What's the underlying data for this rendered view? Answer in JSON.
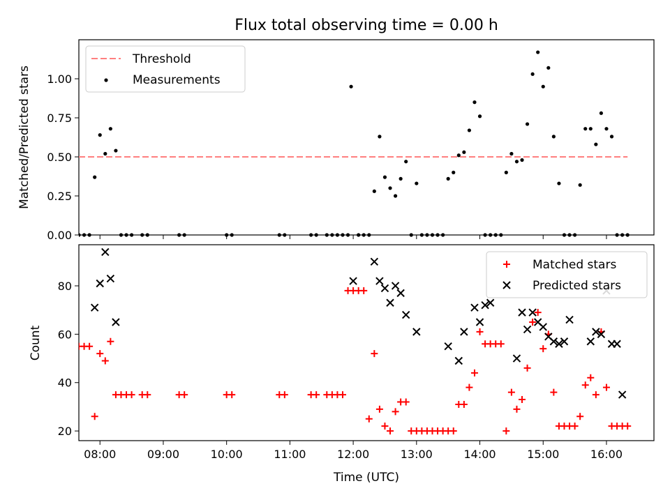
{
  "chart_data": [
    {
      "type": "scatter",
      "title": "Flux total observing time = 0.00 h",
      "xlabel": "",
      "ylabel": "Matched/Predicted stars",
      "xlim": [
        "07:40",
        "16:45"
      ],
      "ylim": [
        0,
        1.25
      ],
      "yticks": [
        "0.00",
        "0.25",
        "0.50",
        "0.75",
        "1.00"
      ],
      "legend_position": "top-left",
      "series": [
        {
          "name": "Threshold",
          "style": "dashed-line",
          "color": "#ff7f7f",
          "x": [
            "07:40",
            "16:20"
          ],
          "y": [
            0.5,
            0.5
          ]
        },
        {
          "name": "Measurements",
          "style": "dot",
          "color": "#000000",
          "x": [
            "07:40",
            "07:45",
            "07:50",
            "07:55",
            "08:00",
            "08:05",
            "08:10",
            "08:15",
            "08:20",
            "08:25",
            "08:30",
            "08:40",
            "08:45",
            "09:15",
            "09:20",
            "10:00",
            "10:05",
            "10:50",
            "10:55",
            "11:20",
            "11:25",
            "11:35",
            "11:40",
            "11:45",
            "11:50",
            "11:55",
            "11:58",
            "12:05",
            "12:10",
            "12:15",
            "12:20",
            "12:25",
            "12:30",
            "12:35",
            "12:40",
            "12:45",
            "12:50",
            "12:55",
            "13:00",
            "13:05",
            "13:10",
            "13:15",
            "13:20",
            "13:25",
            "13:30",
            "13:35",
            "13:40",
            "13:45",
            "13:50",
            "13:55",
            "14:00",
            "14:05",
            "14:10",
            "14:15",
            "14:20",
            "14:25",
            "14:30",
            "14:35",
            "14:40",
            "14:45",
            "14:50",
            "14:55",
            "15:00",
            "15:05",
            "15:10",
            "15:15",
            "15:20",
            "15:25",
            "15:30",
            "15:35",
            "15:40",
            "15:45",
            "15:50",
            "15:55",
            "16:00",
            "16:05",
            "16:10",
            "16:15",
            "16:20"
          ],
          "y": [
            0,
            0,
            0,
            0.37,
            0.64,
            0.52,
            0.68,
            0.54,
            0,
            0,
            0,
            0,
            0,
            0,
            0,
            0,
            0,
            0,
            0,
            0,
            0,
            0,
            0,
            0,
            0,
            0,
            0.95,
            0,
            0,
            0,
            0.28,
            0.63,
            0.37,
            0.3,
            0.25,
            0.36,
            0.47,
            0,
            0.33,
            0,
            0,
            0,
            0,
            0,
            0.36,
            0.4,
            0.51,
            0.53,
            0.67,
            0.85,
            0.76,
            0,
            0,
            0,
            0,
            0.4,
            0.52,
            0.47,
            0.48,
            0.71,
            1.03,
            1.17,
            0.95,
            1.07,
            0.63,
            0.33,
            0,
            0,
            0,
            0.32,
            0.68,
            0.68,
            0.58,
            0.78,
            0.68,
            0.63,
            0,
            0,
            0
          ]
        }
      ]
    },
    {
      "type": "scatter",
      "title": "",
      "xlabel": "Time (UTC)",
      "ylabel": "Count",
      "xlim": [
        "07:40",
        "16:45"
      ],
      "ylim": [
        16,
        97
      ],
      "yticks": [
        "20",
        "40",
        "60",
        "80"
      ],
      "xticks": [
        "08:00",
        "09:00",
        "10:00",
        "11:00",
        "12:00",
        "13:00",
        "14:00",
        "15:00",
        "16:00"
      ],
      "legend_position": "top-right",
      "series": [
        {
          "name": "Matched stars",
          "marker": "plus",
          "color": "#ff0000",
          "x": [
            "07:40",
            "07:45",
            "07:50",
            "07:55",
            "08:00",
            "08:05",
            "08:10",
            "08:15",
            "08:20",
            "08:25",
            "08:30",
            "08:40",
            "08:45",
            "09:15",
            "09:20",
            "10:00",
            "10:05",
            "10:50",
            "10:55",
            "11:20",
            "11:25",
            "11:35",
            "11:40",
            "11:45",
            "11:50",
            "11:55",
            "12:00",
            "12:05",
            "12:10",
            "12:15",
            "12:20",
            "12:25",
            "12:30",
            "12:35",
            "12:40",
            "12:45",
            "12:50",
            "12:55",
            "13:00",
            "13:05",
            "13:10",
            "13:15",
            "13:20",
            "13:25",
            "13:30",
            "13:35",
            "13:40",
            "13:45",
            "13:50",
            "13:55",
            "14:00",
            "14:05",
            "14:10",
            "14:15",
            "14:20",
            "14:25",
            "14:30",
            "14:35",
            "14:40",
            "14:45",
            "14:50",
            "14:55",
            "15:00",
            "15:05",
            "15:10",
            "15:15",
            "15:20",
            "15:25",
            "15:30",
            "15:35",
            "15:40",
            "15:45",
            "15:50",
            "15:55",
            "16:00",
            "16:05",
            "16:10",
            "16:15",
            "16:20"
          ],
          "y": [
            55,
            55,
            55,
            26,
            52,
            49,
            57,
            35,
            35,
            35,
            35,
            35,
            35,
            35,
            35,
            35,
            35,
            35,
            35,
            35,
            35,
            35,
            35,
            35,
            35,
            78,
            78,
            78,
            78,
            25,
            52,
            29,
            22,
            20,
            28,
            32,
            32,
            20,
            20,
            20,
            20,
            20,
            20,
            20,
            20,
            20,
            31,
            31,
            38,
            44,
            61,
            56,
            56,
            56,
            56,
            20,
            36,
            29,
            33,
            46,
            65,
            69,
            54,
            60,
            36,
            22,
            22,
            22,
            22,
            26,
            39,
            42,
            35,
            61,
            38,
            22,
            22,
            22,
            22
          ]
        },
        {
          "name": "Predicted stars",
          "marker": "x",
          "color": "#000000",
          "x": [
            "07:55",
            "08:00",
            "08:05",
            "08:10",
            "08:15",
            "12:00",
            "12:20",
            "12:25",
            "12:30",
            "12:35",
            "12:40",
            "12:45",
            "12:50",
            "13:00",
            "13:30",
            "13:40",
            "13:45",
            "13:55",
            "14:00",
            "14:05",
            "14:10",
            "14:35",
            "14:40",
            "14:45",
            "14:50",
            "14:55",
            "15:00",
            "15:05",
            "15:10",
            "15:15",
            "15:20",
            "15:25",
            "15:45",
            "15:50",
            "15:55",
            "16:00",
            "16:05",
            "16:10",
            "16:15"
          ],
          "y": [
            71,
            81,
            94,
            83,
            65,
            82,
            90,
            82,
            79,
            73,
            80,
            77,
            68,
            61,
            55,
            49,
            61,
            71,
            65,
            72,
            73,
            50,
            69,
            62,
            69,
            65,
            63,
            59,
            57,
            56,
            57,
            66,
            57,
            61,
            60,
            78,
            56,
            56,
            35
          ]
        }
      ]
    }
  ]
}
